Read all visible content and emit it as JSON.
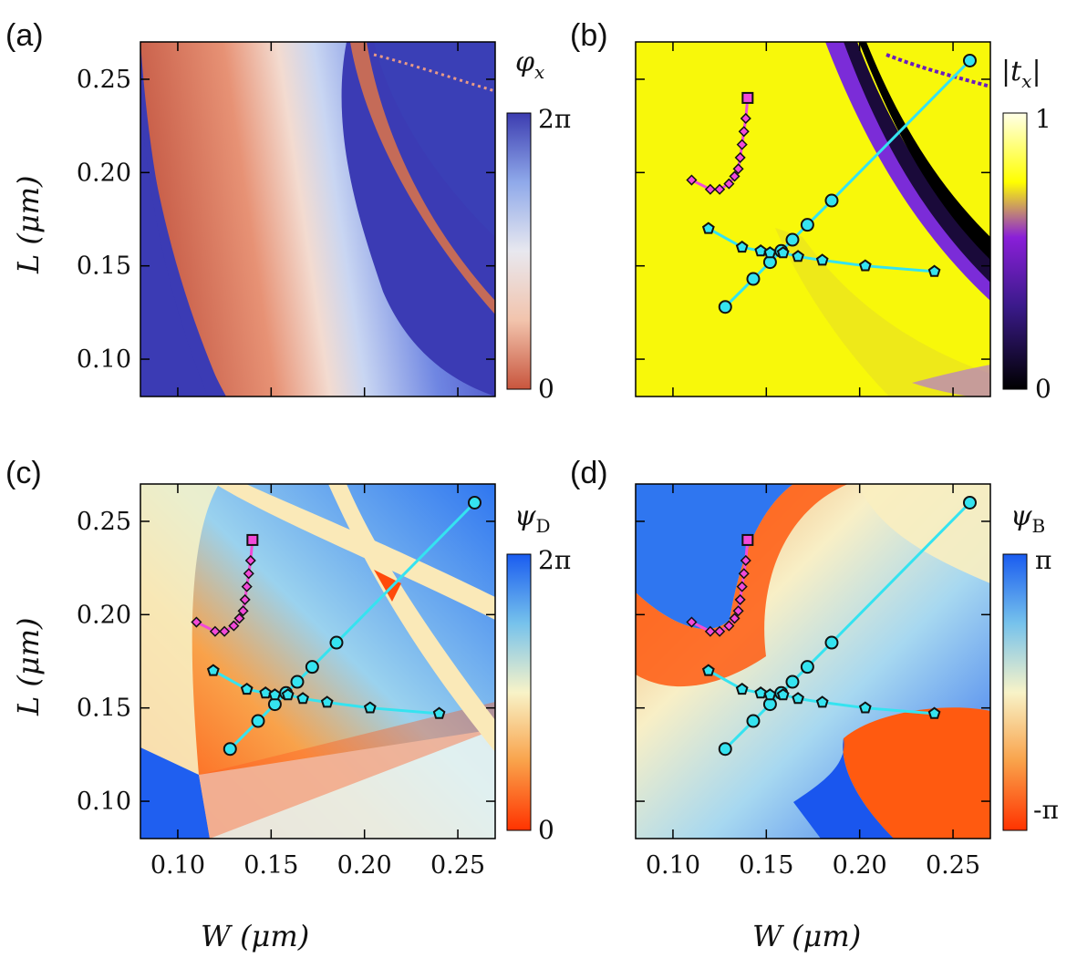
{
  "figure": {
    "x_axis_label": "W (μm)",
    "y_axis_label": "L (μm)",
    "x_ticks": [
      "0.10",
      "0.15",
      "0.20",
      "0.25"
    ],
    "y_ticks": [
      "0.10",
      "0.15",
      "0.20",
      "0.25"
    ],
    "x_tick_values": [
      0.1,
      0.15,
      0.2,
      0.25
    ],
    "y_tick_values": [
      0.1,
      0.15,
      0.2,
      0.25
    ],
    "xlim": [
      0.08,
      0.27
    ],
    "ylim": [
      0.08,
      0.27
    ]
  },
  "panels": [
    {
      "id": "a",
      "tag": "(a)",
      "quantity": "φ_x",
      "colorbar": {
        "min_label": "0",
        "max_label": "2π",
        "colors": [
          "#c8553d",
          "#f2c4ad",
          "#e8e8ef",
          "#8fa9ea",
          "#3c3cb0"
        ]
      },
      "trajectories": false
    },
    {
      "id": "b",
      "tag": "(b)",
      "quantity": "|t_x|",
      "colorbar": {
        "min_label": "0",
        "max_label": "1",
        "colors": [
          "#000000",
          "#3a1a8a",
          "#8a1fd8",
          "#ffff00",
          "#ffffe8"
        ]
      },
      "trajectories": true
    },
    {
      "id": "c",
      "tag": "(c)",
      "quantity": "ψ_D",
      "colorbar": {
        "min_label": "0",
        "max_label": "2π",
        "colors": [
          "#ff3300",
          "#f9a24a",
          "#f8f3c8",
          "#76c2ec",
          "#1a5cf0"
        ]
      },
      "trajectories": true
    },
    {
      "id": "d",
      "tag": "(d)",
      "quantity": "ψ_B",
      "colorbar": {
        "min_label": "-π",
        "max_label": "π",
        "colors": [
          "#ff3300",
          "#f9a24a",
          "#f8f3c8",
          "#76c2ec",
          "#1a5cf0"
        ]
      },
      "trajectories": true
    }
  ],
  "chart_data": {
    "type": "heatmap",
    "title": "",
    "xlabel": "W (μm)",
    "ylabel": "L (μm)",
    "xlim": [
      0.08,
      0.27
    ],
    "ylim": [
      0.08,
      0.27
    ],
    "series": [
      {
        "name": "cyan-circles",
        "marker": "circle",
        "color": "#35e3f0",
        "x": [
          0.128,
          0.143,
          0.152,
          0.158,
          0.164,
          0.172,
          0.185,
          0.259
        ],
        "y": [
          0.128,
          0.143,
          0.152,
          0.158,
          0.164,
          0.172,
          0.185,
          0.26
        ]
      },
      {
        "name": "cyan-pentagons",
        "marker": "pentagon",
        "color": "#35e3f0",
        "x": [
          0.119,
          0.137,
          0.147,
          0.152,
          0.159,
          0.167,
          0.18,
          0.203,
          0.24
        ],
        "y": [
          0.17,
          0.16,
          0.158,
          0.157,
          0.157,
          0.155,
          0.153,
          0.15,
          0.147
        ]
      },
      {
        "name": "magenta-diamonds",
        "marker": "diamond",
        "color": "#f24ad8",
        "x": [
          0.11,
          0.12,
          0.125,
          0.13,
          0.133,
          0.135,
          0.136,
          0.137,
          0.138,
          0.139
        ],
        "y": [
          0.196,
          0.191,
          0.191,
          0.194,
          0.198,
          0.202,
          0.208,
          0.215,
          0.222,
          0.229
        ]
      },
      {
        "name": "magenta-square",
        "marker": "square",
        "color": "#f24ad8",
        "x": [
          0.14
        ],
        "y": [
          0.24
        ]
      }
    ]
  }
}
